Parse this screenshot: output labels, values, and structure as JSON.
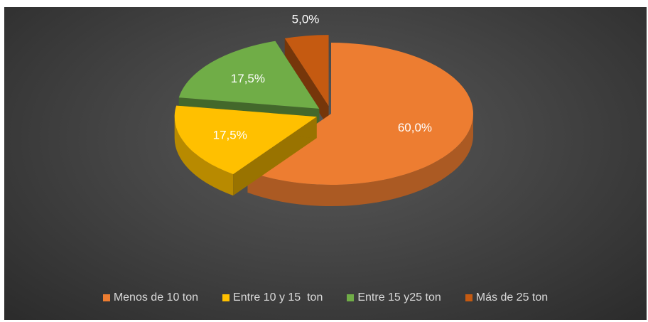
{
  "chart_data": {
    "type": "pie",
    "categories": [
      "Menos de 10 ton",
      "Entre 10 y 15  ton",
      "Entre 15 y25 ton",
      "Más de 25 ton"
    ],
    "values": [
      60.0,
      17.5,
      17.5,
      5.0
    ],
    "data_labels": [
      "60,0%",
      "17,5%",
      "17,5%",
      "5,0%"
    ],
    "colors": [
      "#ED7D31",
      "#FFC000",
      "#70AD47",
      "#C55A11"
    ],
    "style": "3d-exploded",
    "legend_position": "bottom"
  }
}
